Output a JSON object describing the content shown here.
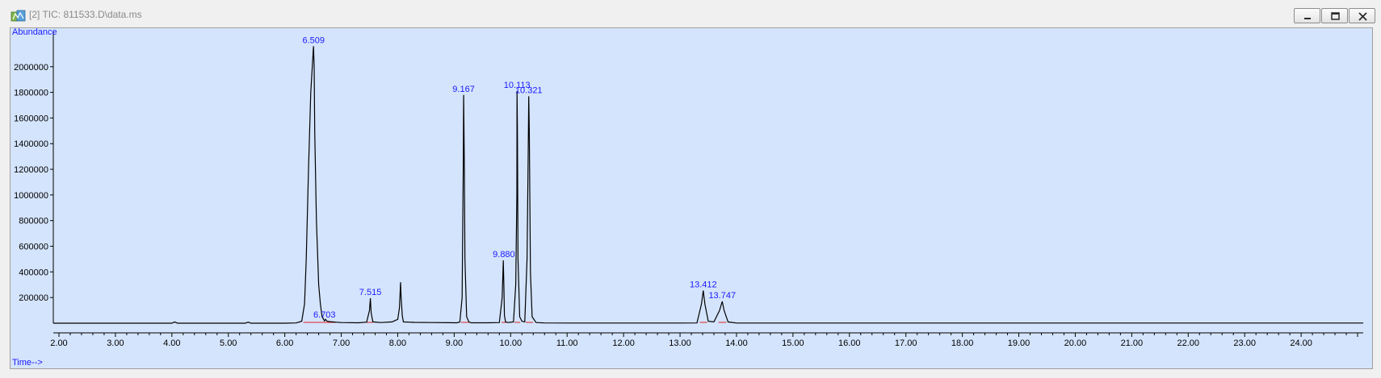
{
  "window": {
    "title": "[2] TIC: 811533.D\\data.ms",
    "icon": "chemstation-app-icon",
    "buttons": [
      {
        "name": "minimize-button",
        "icon": "minimize-icon"
      },
      {
        "name": "restore-button",
        "icon": "restore-icon"
      },
      {
        "name": "close-button",
        "icon": "close-icon"
      }
    ]
  },
  "colors": {
    "plot_background": "#d4e4fc",
    "trace": "#000000",
    "peak_label": "#1a1aff",
    "axis_label": "#1a1aff",
    "baseline_marker": "#e02020"
  },
  "chart_data": {
    "type": "line",
    "title": "",
    "xlabel": "Time-->",
    "ylabel": "Abundance",
    "xlim": [
      1.9,
      25.1
    ],
    "ylim": [
      0,
      2250000
    ],
    "grid": false,
    "x_ticks": [
      "2.00",
      "3.00",
      "4.00",
      "5.00",
      "6.00",
      "7.00",
      "8.00",
      "9.00",
      "10.00",
      "11.00",
      "12.00",
      "13.00",
      "14.00",
      "15.00",
      "16.00",
      "17.00",
      "18.00",
      "19.00",
      "20.00",
      "21.00",
      "22.00",
      "23.00",
      "24.00"
    ],
    "y_ticks": [
      "200000",
      "400000",
      "600000",
      "800000",
      "1000000",
      "1200000",
      "1400000",
      "1600000",
      "1800000",
      "2000000"
    ],
    "series": [
      {
        "x": [
          1.9,
          2.5,
          3.0,
          3.5,
          4.0,
          4.05,
          4.1,
          4.5,
          5.0,
          5.3,
          5.35,
          5.4,
          5.5,
          6.0,
          6.2,
          6.3,
          6.35,
          6.38,
          6.42,
          6.46,
          6.5,
          6.509,
          6.52,
          6.53,
          6.56,
          6.6,
          6.63,
          6.66,
          6.7,
          6.703,
          6.72,
          6.75,
          6.8,
          6.85,
          6.9,
          7.0,
          7.3,
          7.45,
          7.5,
          7.515,
          7.53,
          7.56,
          7.7,
          7.9,
          8.0,
          8.03,
          8.05,
          8.06,
          8.08,
          8.1,
          8.3,
          8.6,
          8.9,
          9.05,
          9.1,
          9.14,
          9.16,
          9.167,
          9.18,
          9.19,
          9.22,
          9.26,
          9.3,
          9.6,
          9.8,
          9.85,
          9.87,
          9.88,
          9.89,
          9.91,
          9.95,
          10.05,
          10.09,
          10.11,
          10.113,
          10.12,
          10.13,
          10.16,
          10.2,
          10.25,
          10.29,
          10.31,
          10.321,
          10.33,
          10.35,
          10.38,
          10.45,
          10.6,
          11.0,
          12.0,
          13.0,
          13.3,
          13.38,
          13.412,
          13.44,
          13.5,
          13.6,
          13.7,
          13.747,
          13.78,
          13.85,
          14.0,
          16.0,
          18.0,
          20.0,
          22.0,
          24.0,
          25.1
        ],
        "y": [
          0,
          0,
          0,
          0,
          0,
          10000,
          0,
          0,
          0,
          0,
          8000,
          0,
          0,
          0,
          2000,
          15000,
          150000,
          500000,
          1200000,
          1800000,
          2100000,
          2160000,
          2000000,
          1500000,
          800000,
          300000,
          150000,
          50000,
          20000,
          18000,
          30000,
          15000,
          12000,
          10000,
          8000,
          5000,
          3000,
          8000,
          100000,
          195000,
          80000,
          10000,
          5000,
          10000,
          30000,
          120000,
          320000,
          200000,
          60000,
          10000,
          6000,
          5000,
          4000,
          3000,
          10000,
          200000,
          1200000,
          1780000,
          1200000,
          500000,
          50000,
          10000,
          3000,
          3000,
          5000,
          200000,
          490000,
          300000,
          60000,
          10000,
          5000,
          10000,
          300000,
          1000000,
          1810000,
          1500000,
          500000,
          50000,
          15000,
          10000,
          500000,
          1300000,
          1770000,
          1500000,
          400000,
          50000,
          5000,
          2000,
          1000,
          1000,
          1000,
          2000,
          150000,
          255000,
          150000,
          15000,
          10000,
          100000,
          170000,
          100000,
          10000,
          1000,
          1000,
          1000,
          1000,
          1000,
          1000,
          1000
        ]
      }
    ],
    "peak_labels": [
      {
        "label": "6.509",
        "x": 6.509,
        "y": 2160000
      },
      {
        "label": "6.703",
        "x": 6.703,
        "y": 18000
      },
      {
        "label": "7.515",
        "x": 7.515,
        "y": 195000
      },
      {
        "label": "9.167",
        "x": 9.167,
        "y": 1780000
      },
      {
        "label": "9.880",
        "x": 9.88,
        "y": 490000
      },
      {
        "label": "10.113",
        "x": 10.113,
        "y": 1810000
      },
      {
        "label": "10.321",
        "x": 10.321,
        "y": 1770000
      },
      {
        "label": "13.412",
        "x": 13.412,
        "y": 255000
      },
      {
        "label": "13.747",
        "x": 13.747,
        "y": 170000
      }
    ],
    "integration_baselines": [
      [
        6.33,
        6.9
      ],
      [
        7.45,
        7.56
      ],
      [
        9.12,
        9.26
      ],
      [
        9.84,
        9.93
      ],
      [
        10.07,
        10.17
      ],
      [
        10.27,
        10.4
      ],
      [
        13.35,
        13.48
      ],
      [
        13.68,
        13.82
      ]
    ]
  }
}
